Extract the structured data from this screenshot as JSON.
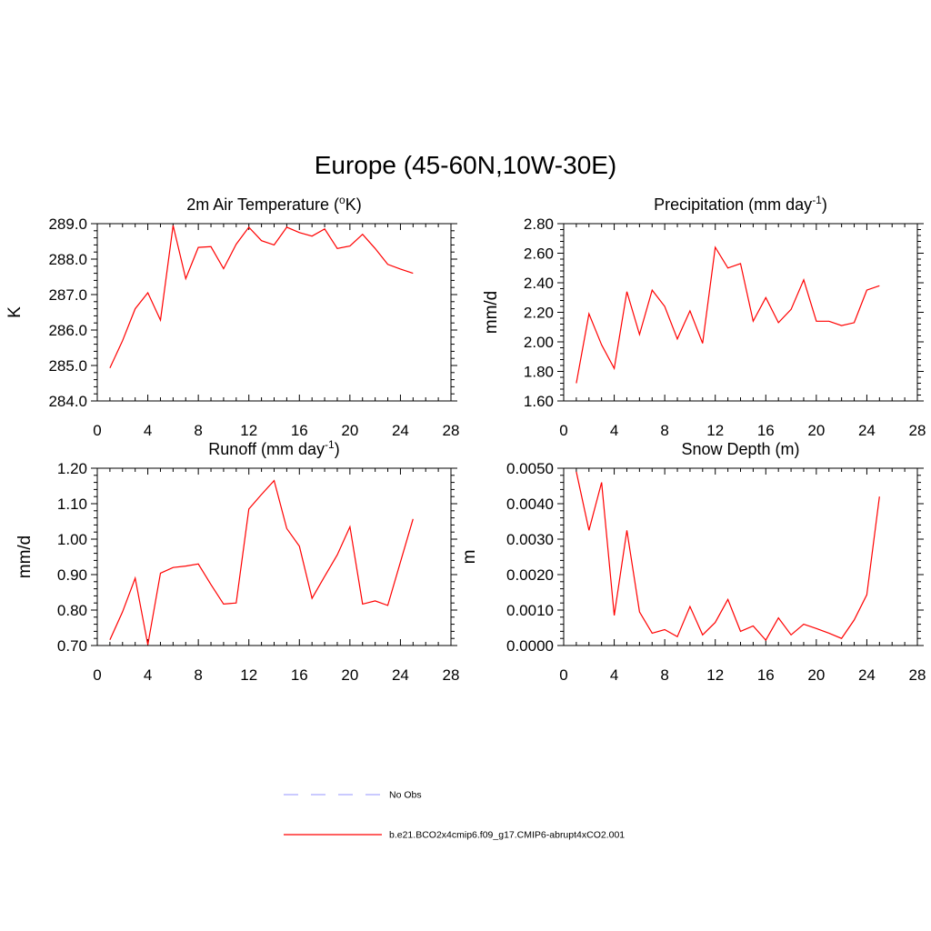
{
  "page": {
    "title": "Europe (45-60N,10W-30E)"
  },
  "chart_data": [
    {
      "type": "line",
      "title_main": "2m Air Temperature (",
      "title_sup": "o",
      "title_tail": "K)",
      "ylabel": "K",
      "xlim": [
        0,
        28
      ],
      "xticks": [
        0,
        4,
        8,
        12,
        16,
        20,
        24,
        28
      ],
      "ylim": [
        284.0,
        289.0
      ],
      "yticks": [
        "284.0",
        "285.0",
        "286.0",
        "287.0",
        "288.0",
        "289.0"
      ],
      "x": [
        1,
        2,
        3,
        4,
        5,
        6,
        7,
        8,
        9,
        10,
        11,
        12,
        13,
        14,
        15,
        16,
        17,
        18,
        19,
        20,
        21,
        22,
        23,
        24,
        25
      ],
      "series": [
        {
          "name": "b.e21.BCO2x4cmip6.f09_g17.CMIP6-abrupt4xCO2.001",
          "color": "#ff0000",
          "values": [
            284.93,
            285.7,
            286.6,
            287.05,
            286.28,
            288.95,
            287.45,
            288.33,
            288.35,
            287.73,
            288.42,
            288.9,
            288.52,
            288.4,
            288.9,
            288.75,
            288.65,
            288.85,
            288.3,
            288.37,
            288.7,
            288.3,
            287.85,
            287.72,
            287.6
          ]
        }
      ]
    },
    {
      "type": "line",
      "title_main": "Precipitation (mm day",
      "title_sup": "-1",
      "title_tail": ")",
      "ylabel": "mm/d",
      "xlim": [
        0,
        28
      ],
      "xticks": [
        0,
        4,
        8,
        12,
        16,
        20,
        24,
        28
      ],
      "ylim": [
        1.6,
        2.8
      ],
      "yticks": [
        "1.60",
        "1.80",
        "2.00",
        "2.20",
        "2.40",
        "2.60",
        "2.80"
      ],
      "x": [
        1,
        2,
        3,
        4,
        5,
        6,
        7,
        8,
        9,
        10,
        11,
        12,
        13,
        14,
        15,
        16,
        17,
        18,
        19,
        20,
        21,
        22,
        23,
        24,
        25
      ],
      "series": [
        {
          "name": "b.e21.BCO2x4cmip6.f09_g17.CMIP6-abrupt4xCO2.001",
          "color": "#ff0000",
          "values": [
            1.72,
            2.19,
            1.98,
            1.82,
            2.34,
            2.05,
            2.35,
            2.24,
            2.02,
            2.21,
            1.99,
            2.64,
            2.5,
            2.53,
            2.14,
            2.3,
            2.13,
            2.22,
            2.42,
            2.14,
            2.14,
            2.11,
            2.13,
            2.35,
            2.38
          ]
        }
      ]
    },
    {
      "type": "line",
      "title_main": "Runoff (mm day",
      "title_sup": "-1",
      "title_tail": ")",
      "ylabel": "mm/d",
      "xlim": [
        0,
        28
      ],
      "xticks": [
        0,
        4,
        8,
        12,
        16,
        20,
        24,
        28
      ],
      "ylim": [
        0.7,
        1.2
      ],
      "yticks": [
        "0.70",
        "0.80",
        "0.90",
        "1.00",
        "1.10",
        "1.20"
      ],
      "x": [
        1,
        2,
        3,
        4,
        5,
        6,
        7,
        8,
        9,
        10,
        11,
        12,
        13,
        14,
        15,
        16,
        17,
        18,
        19,
        20,
        21,
        22,
        23,
        24,
        25
      ],
      "series": [
        {
          "name": "b.e21.BCO2x4cmip6.f09_g17.CMIP6-abrupt4xCO2.001",
          "color": "#ff0000",
          "values": [
            0.716,
            0.795,
            0.89,
            0.702,
            0.904,
            0.92,
            0.924,
            0.93,
            0.872,
            0.817,
            0.82,
            1.085,
            1.126,
            1.165,
            1.03,
            0.98,
            0.833,
            0.895,
            0.956,
            1.035,
            0.817,
            0.826,
            0.813,
            0.935,
            1.057
          ]
        }
      ]
    },
    {
      "type": "line",
      "title_main": "Snow Depth (m)",
      "title_sup": "",
      "title_tail": "",
      "ylabel": "m",
      "xlim": [
        0,
        28
      ],
      "xticks": [
        0,
        4,
        8,
        12,
        16,
        20,
        24,
        28
      ],
      "ylim": [
        0.0,
        0.005
      ],
      "yticks": [
        "0.0000",
        "0.0010",
        "0.0020",
        "0.0030",
        "0.0040",
        "0.0050"
      ],
      "x": [
        1,
        2,
        3,
        4,
        5,
        6,
        7,
        8,
        9,
        10,
        11,
        12,
        13,
        14,
        15,
        16,
        17,
        18,
        19,
        20,
        21,
        22,
        23,
        24,
        25
      ],
      "series": [
        {
          "name": "b.e21.BCO2x4cmip6.f09_g17.CMIP6-abrupt4xCO2.001",
          "color": "#ff0000",
          "values": [
            0.0049,
            0.00325,
            0.0046,
            0.00085,
            0.00325,
            0.00095,
            0.00035,
            0.00045,
            0.00025,
            0.0011,
            0.0003,
            0.00065,
            0.0013,
            0.0004,
            0.00055,
            0.00015,
            0.00078,
            0.0003,
            0.0006,
            0.00048,
            0.00035,
            0.0002,
            0.00072,
            0.00143,
            0.0042
          ]
        }
      ]
    }
  ],
  "legend": [
    {
      "label": "No Obs",
      "color": "#aaaaff",
      "dash": true
    },
    {
      "label": "b.e21.BCO2x4cmip6.f09_g17.CMIP6-abrupt4xCO2.001",
      "color": "#ff0000",
      "dash": false
    }
  ]
}
